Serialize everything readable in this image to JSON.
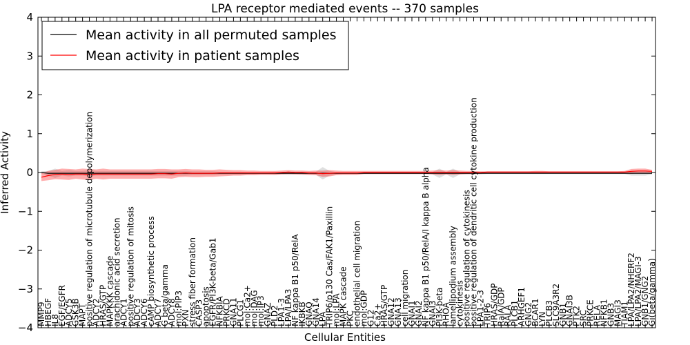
{
  "chart_data": {
    "type": "line",
    "title": "LPA receptor mediated events -- 370 samples",
    "xlabel": "Cellular Entities",
    "ylabel": "Inferred Activity",
    "ylim": [
      -4,
      4
    ],
    "yticks": [
      -4,
      -3,
      -2,
      -1,
      0,
      1,
      2,
      3,
      4
    ],
    "legend_position": "upper-left",
    "categories": [
      "MMP9",
      "HBEGF",
      "IL8",
      "EGF/EGFR",
      "ADCY5",
      "GSK3B",
      "MAPT",
      "positive regulation of microtubule depolymerization",
      "ADCY2",
      "HRAS/GTP",
      "MAPKKK cascade",
      "arachidonic acid secretion",
      "ADCY1",
      "positive regulation of mitosis",
      "ADCY3",
      "ADCY6",
      "cAMP biosynthetic process",
      "ADCY7",
      "G beta/gamma",
      "ADCY8",
      "mol:PIP3",
      "PXN",
      "stress fiber formation",
      "CASP3",
      "apoptosis",
      "EGFR/PI3K-beta/Gab1",
      "NFKBIA",
      "PRKCD",
      "GNA11",
      "PLCG1",
      "mol:Ca2+",
      "mol:DAG",
      "mol:IP3",
      "GNAZ",
      "PLD2",
      "LPA1-3",
      "LPA/LPA3",
      "NF kappa B1 p50/RelA",
      "IKBKB",
      "GNAQ",
      "GNA14",
      "LPA",
      "TRIP6/p130 Cas/FAK1/Paxillin",
      "mol:LPA",
      "MAPK cascade",
      "PKC",
      "endothelial cell migration",
      "mol:GDP",
      "G12",
      "Ca2+",
      "HRAS/GTP",
      "GNA12",
      "GNA13",
      "cell migration",
      "GNAI1",
      "GNAI2",
      "NF kappa B1 p50/RelA/I kappa B alpha",
      "GNAI3",
      "PI3K-beta",
      "RHOA",
      "lamellipodium assembly",
      "cytokinesis",
      "positive regulation of cytokinesis",
      "positive regulation of dendritic cell cytokine production",
      "LPA1-2-3",
      "TRIP6",
      "HRAS/GDP",
      "RalA/GDP",
      "RALA",
      "PLCB1",
      "ARHGEF1",
      "GNG2",
      "BCAR1",
      "LYN",
      "PLCB3",
      "SLC9A3R2",
      "GNB1",
      "GNAI3B",
      "PTK2",
      "SRC",
      "PRKCE",
      "RELA",
      "NFKB1",
      "GNB3",
      "MAGI3",
      "TIAM1",
      "LPA/LPA2/NHERF2",
      "LPA/LPA2/MAGI-3",
      "GNB1/GNG2",
      "Gi(beta/gamma)"
    ],
    "series": [
      {
        "name": "Mean activity in all permuted samples",
        "color": "#000000",
        "values": [
          0.0,
          -0.02,
          -0.02,
          -0.02,
          -0.02,
          -0.02,
          -0.02,
          -0.02,
          -0.02,
          -0.02,
          -0.02,
          -0.02,
          -0.02,
          -0.02,
          -0.02,
          -0.02,
          -0.02,
          -0.02,
          -0.02,
          -0.02,
          -0.02,
          -0.02,
          -0.02,
          -0.02,
          -0.02,
          -0.02,
          -0.02,
          -0.02,
          -0.02,
          -0.02,
          -0.02,
          -0.02,
          -0.02,
          -0.02,
          -0.02,
          -0.02,
          -0.02,
          -0.02,
          -0.02,
          -0.02,
          -0.02,
          -0.02,
          -0.02,
          -0.02,
          -0.02,
          -0.02,
          -0.02,
          -0.02,
          -0.02,
          -0.02,
          -0.02,
          -0.02,
          -0.02,
          -0.02,
          -0.02,
          -0.02,
          -0.02,
          -0.02,
          -0.02,
          -0.02,
          -0.02,
          -0.02,
          -0.02,
          -0.02,
          -0.02,
          -0.02,
          -0.02,
          -0.02,
          -0.02,
          -0.02,
          -0.02,
          -0.02,
          -0.02,
          -0.02,
          -0.02,
          -0.02,
          -0.02,
          -0.02,
          -0.02,
          -0.02,
          -0.02,
          -0.02,
          -0.02,
          -0.02,
          -0.02,
          -0.02,
          -0.02,
          -0.02,
          -0.02,
          -0.02
        ],
        "spread": [
          0.03,
          0.06,
          0.12,
          0.06,
          0.08,
          0.06,
          0.06,
          0.08,
          0.06,
          0.06,
          0.06,
          0.06,
          0.06,
          0.06,
          0.06,
          0.06,
          0.06,
          0.06,
          0.06,
          0.06,
          0.06,
          0.06,
          0.05,
          0.05,
          0.05,
          0.05,
          0.04,
          0.04,
          0.04,
          0.04,
          0.03,
          0.03,
          0.03,
          0.03,
          0.04,
          0.03,
          0.04,
          0.03,
          0.04,
          0.04,
          0.04,
          0.16,
          0.06,
          0.03,
          0.03,
          0.03,
          0.03,
          0.02,
          0.02,
          0.02,
          0.02,
          0.02,
          0.02,
          0.02,
          0.02,
          0.02,
          0.02,
          0.03,
          0.12,
          0.03,
          0.12,
          0.03,
          0.03,
          0.03,
          0.03,
          0.02,
          0.02,
          0.02,
          0.02,
          0.02,
          0.02,
          0.02,
          0.02,
          0.02,
          0.02,
          0.02,
          0.02,
          0.02,
          0.02,
          0.02,
          0.02,
          0.02,
          0.02,
          0.02,
          0.02,
          0.02,
          0.06,
          0.06,
          0.06,
          0.03
        ]
      },
      {
        "name": "Mean activity in patient samples",
        "color": "#ff0000",
        "values": [
          -0.12,
          -0.08,
          -0.05,
          -0.04,
          -0.05,
          -0.04,
          -0.04,
          -0.05,
          -0.04,
          -0.04,
          -0.04,
          -0.04,
          -0.04,
          -0.04,
          -0.04,
          -0.04,
          -0.04,
          -0.03,
          -0.03,
          -0.04,
          -0.02,
          -0.01,
          -0.02,
          -0.02,
          -0.02,
          -0.02,
          -0.01,
          -0.01,
          -0.01,
          -0.01,
          -0.01,
          -0.01,
          -0.01,
          -0.01,
          -0.01,
          0.0,
          0.01,
          0.0,
          0.0,
          -0.01,
          -0.01,
          -0.03,
          -0.02,
          -0.01,
          -0.01,
          -0.01,
          -0.01,
          0.0,
          0.0,
          0.0,
          0.0,
          0.0,
          0.0,
          0.0,
          0.0,
          0.0,
          0.0,
          0.0,
          0.0,
          0.0,
          0.0,
          0.0,
          0.0,
          0.0,
          0.0,
          0.01,
          0.01,
          0.01,
          0.01,
          0.01,
          0.01,
          0.01,
          0.01,
          0.01,
          0.01,
          0.01,
          0.01,
          0.01,
          0.01,
          0.01,
          0.01,
          0.01,
          0.01,
          0.01,
          0.01,
          0.01,
          0.03,
          0.04,
          0.04,
          0.03
        ],
        "spread": [
          0.1,
          0.12,
          0.12,
          0.14,
          0.14,
          0.12,
          0.14,
          0.14,
          0.12,
          0.14,
          0.12,
          0.12,
          0.12,
          0.12,
          0.12,
          0.12,
          0.12,
          0.12,
          0.12,
          0.12,
          0.1,
          0.1,
          0.1,
          0.1,
          0.09,
          0.09,
          0.09,
          0.08,
          0.07,
          0.07,
          0.06,
          0.06,
          0.05,
          0.05,
          0.05,
          0.05,
          0.05,
          0.05,
          0.05,
          0.05,
          0.06,
          0.08,
          0.08,
          0.06,
          0.05,
          0.05,
          0.05,
          0.04,
          0.04,
          0.04,
          0.04,
          0.04,
          0.04,
          0.04,
          0.04,
          0.04,
          0.04,
          0.05,
          0.06,
          0.05,
          0.06,
          0.05,
          0.04,
          0.04,
          0.03,
          0.02,
          0.02,
          0.02,
          0.02,
          0.02,
          0.02,
          0.02,
          0.03,
          0.03,
          0.02,
          0.02,
          0.02,
          0.02,
          0.02,
          0.02,
          0.02,
          0.02,
          0.02,
          0.02,
          0.02,
          0.03,
          0.06,
          0.06,
          0.06,
          0.04
        ]
      }
    ]
  }
}
